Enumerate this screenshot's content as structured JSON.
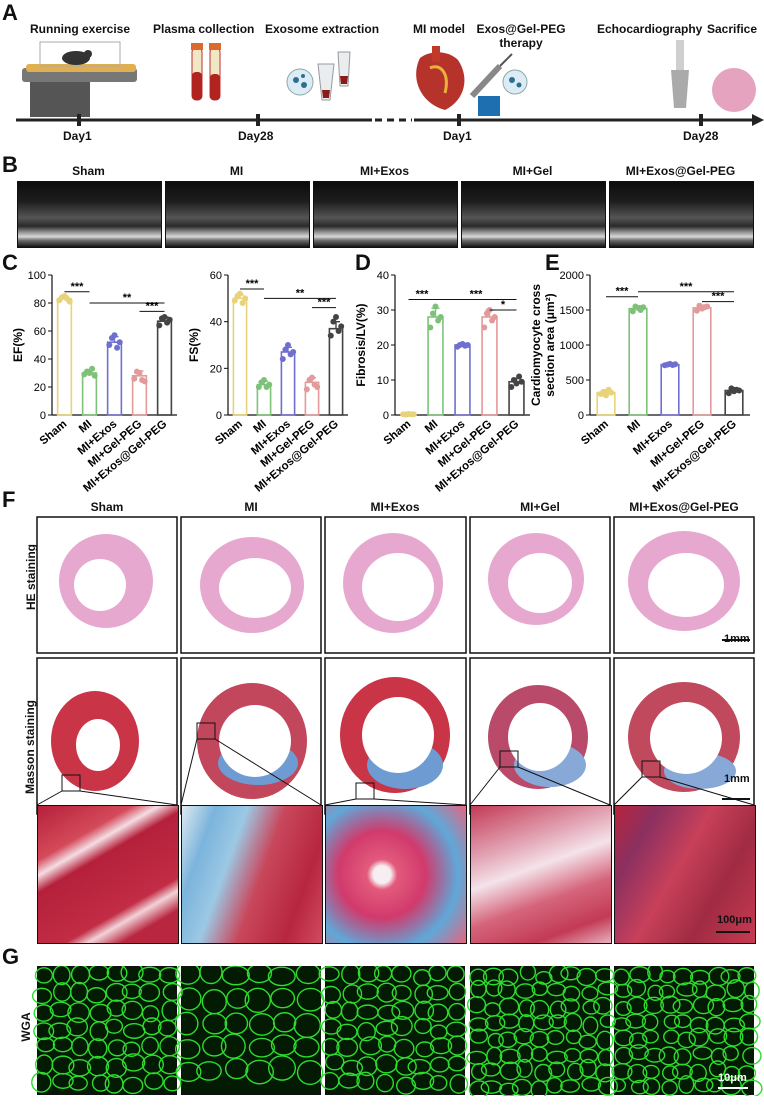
{
  "panel_letters": {
    "a": "A",
    "b": "B",
    "c": "C",
    "d": "D",
    "e": "E",
    "f": "F",
    "g": "G"
  },
  "timeline": {
    "steps": [
      "Running exercise",
      "Plasma collection",
      "Exosome extraction",
      "MI model",
      "Exos@Gel-PEG",
      "therapy",
      "Echocardiography",
      "Sacrifice"
    ],
    "days": [
      "Day1",
      "Day28",
      "Day1",
      "Day28"
    ]
  },
  "groups": [
    "Sham",
    "MI",
    "MI+Exos",
    "MI+Gel",
    "MI+Exos@Gel-PEG"
  ],
  "chart_groups": [
    "Sham",
    "MI",
    "MI+Exos",
    "MI+Gel-PEG",
    "MI+Exos@Gel-PEG"
  ],
  "colors": {
    "Sham": "#e8d37a",
    "MI": "#7ec27a",
    "MI+Exos": "#6f6fcf",
    "MI+Gel-PEG": "#e39a9a",
    "MI+Exos@Gel-PEG": "#444444"
  },
  "row_labels": {
    "he": "HE staining",
    "masson": "Masson staining",
    "wga": "WGA"
  },
  "scale_bars": {
    "he": "1mm",
    "masson": "1mm",
    "zoom": "100μm",
    "wga": "10μm"
  },
  "chart_data": [
    {
      "type": "bar",
      "ylabel": "EF(%)",
      "categories": [
        "Sham",
        "MI",
        "MI+Exos",
        "MI+Gel-PEG",
        "MI+Exos@Gel-PEG"
      ],
      "values": [
        83,
        30,
        52,
        28,
        67
      ],
      "errors": [
        2,
        2.5,
        4,
        3.5,
        3
      ],
      "ylim": [
        0,
        100
      ],
      "yticks": [
        0,
        20,
        40,
        60,
        80,
        100
      ],
      "points": [
        [
          82,
          84,
          85,
          83,
          81
        ],
        [
          29,
          31,
          30,
          33,
          28
        ],
        [
          50,
          55,
          57,
          48,
          52
        ],
        [
          26,
          31,
          30,
          25,
          24
        ],
        [
          64,
          69,
          70,
          66,
          68
        ]
      ],
      "annotations": [
        {
          "a": 0,
          "b": 1,
          "text": "***",
          "y": 88
        },
        {
          "a": 1,
          "b": 4,
          "text": "**",
          "y": 80
        },
        {
          "a": 3,
          "b": 4,
          "text": "***",
          "y": 74
        }
      ]
    },
    {
      "type": "bar",
      "ylabel": "FS(%)",
      "categories": [
        "Sham",
        "MI",
        "MI+Exos",
        "MI+Gel-PEG",
        "MI+Exos@Gel-PEG"
      ],
      "values": [
        50,
        13,
        27,
        14,
        37
      ],
      "errors": [
        1.5,
        1.5,
        2,
        2,
        3
      ],
      "ylim": [
        0,
        60
      ],
      "yticks": [
        0,
        20,
        40,
        60
      ],
      "points": [
        [
          49,
          51,
          52,
          48,
          50
        ],
        [
          12,
          14,
          15,
          12,
          13
        ],
        [
          24,
          28,
          30,
          26,
          27
        ],
        [
          11,
          15,
          16,
          13,
          12
        ],
        [
          34,
          40,
          42,
          36,
          38
        ]
      ],
      "annotations": [
        {
          "a": 0,
          "b": 1,
          "text": "***",
          "y": 54
        },
        {
          "a": 1,
          "b": 4,
          "text": "**",
          "y": 50
        },
        {
          "a": 3,
          "b": 4,
          "text": "***",
          "y": 46
        }
      ]
    },
    {
      "type": "bar",
      "ylabel": "Fibrosis/LV(%)",
      "categories": [
        "Sham",
        "MI",
        "MI+Exos",
        "MI+Gel-PEG",
        "MI+Exos@Gel-PEG"
      ],
      "values": [
        0.2,
        28,
        20,
        28,
        9.5
      ],
      "errors": [
        0.2,
        2.5,
        0.5,
        2,
        1
      ],
      "ylim": [
        0,
        40
      ],
      "yticks": [
        0,
        10,
        20,
        30,
        40
      ],
      "points": [
        [
          0.2,
          0.1,
          0.3,
          0.2,
          0.2
        ],
        [
          25,
          29,
          31,
          27,
          28
        ],
        [
          19.5,
          20,
          20.3,
          19.8,
          20
        ],
        [
          25,
          29,
          30,
          27,
          28
        ],
        [
          8,
          10,
          9,
          11,
          9.5
        ]
      ],
      "annotations": [
        {
          "a": 0,
          "b": 1,
          "text": "***",
          "y": 33
        },
        {
          "a": 1,
          "b": 4,
          "text": "***",
          "y": 33
        },
        {
          "a": 3,
          "b": 4,
          "text": "*",
          "y": 30
        }
      ]
    },
    {
      "type": "bar",
      "ylabel": "Cardiomyocyte cross section area (μm²)",
      "categories": [
        "Sham",
        "MI",
        "MI+Exos",
        "MI+Gel-PEG",
        "MI+Exos@Gel-PEG"
      ],
      "values": [
        320,
        1520,
        720,
        1530,
        350
      ],
      "errors": [
        40,
        40,
        15,
        40,
        40
      ],
      "ylim": [
        0,
        2000
      ],
      "yticks": [
        0,
        500,
        1000,
        1500,
        2000
      ],
      "points": [
        [
          300,
          330,
          280,
          360,
          320
        ],
        [
          1480,
          1550,
          1530,
          1500,
          1540
        ],
        [
          710,
          720,
          730,
          715,
          725
        ],
        [
          1490,
          1560,
          1520,
          1540,
          1550
        ],
        [
          310,
          380,
          340,
          360,
          350
        ]
      ],
      "annotations": [
        {
          "a": 0,
          "b": 1,
          "text": "***",
          "y": 1690
        },
        {
          "a": 1,
          "b": 4,
          "text": "***",
          "y": 1760
        },
        {
          "a": 3,
          "b": 4,
          "text": "***",
          "y": 1620
        }
      ]
    }
  ]
}
